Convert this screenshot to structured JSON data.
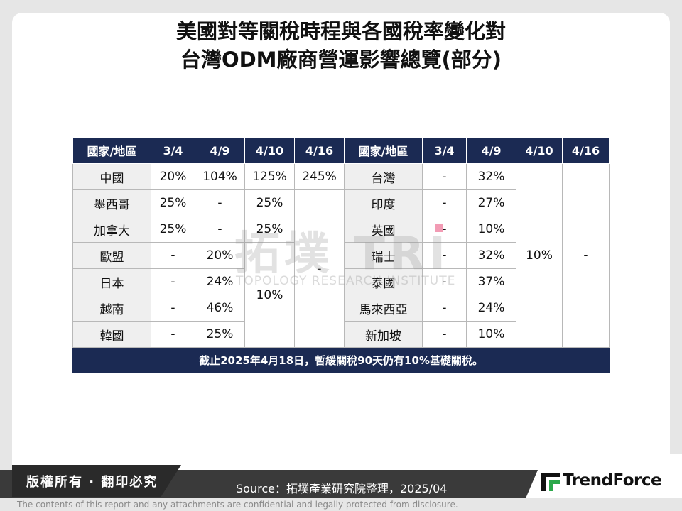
{
  "title": {
    "line1": "美國對等關稅時程與各國稅率變化對",
    "line2": "台灣ODM廠商營運影響總覽(部分)"
  },
  "watermark": {
    "main": "拓墣 TRI",
    "sub": "TOPOLOGY RESEARCH INSTITUTE"
  },
  "table": {
    "headers": [
      "國家/地區",
      "3/4",
      "4/9",
      "4/10",
      "4/16",
      "國家/地區",
      "3/4",
      "4/9",
      "4/10",
      "4/16"
    ],
    "left_rows": [
      {
        "country": "中國",
        "d34": "20%",
        "d49": "104%",
        "d410": "125%",
        "d416": "245%"
      },
      {
        "country": "墨西哥",
        "d34": "25%",
        "d49": "-",
        "d410": "25%"
      },
      {
        "country": "加拿大",
        "d34": "25%",
        "d49": "-",
        "d410": "25%"
      },
      {
        "country": "歐盟",
        "d34": "-",
        "d49": "20%"
      },
      {
        "country": "日本",
        "d34": "-",
        "d49": "24%"
      },
      {
        "country": "越南",
        "d34": "-",
        "d49": "46%"
      },
      {
        "country": "韓國",
        "d34": "-",
        "d49": "25%"
      }
    ],
    "left_merged_410": "10%",
    "left_merged_416": "-",
    "right_rows": [
      {
        "country": "台灣",
        "d34": "-",
        "d49": "32%"
      },
      {
        "country": "印度",
        "d34": "-",
        "d49": "27%"
      },
      {
        "country": "英國",
        "d34": "-",
        "d49": "10%"
      },
      {
        "country": "瑞士",
        "d34": "-",
        "d49": "32%"
      },
      {
        "country": "泰國",
        "d34": "-",
        "d49": "37%"
      },
      {
        "country": "馬來西亞",
        "d34": "-",
        "d49": "24%"
      },
      {
        "country": "新加坡",
        "d34": "-",
        "d49": "10%"
      }
    ],
    "right_merged_410": "10%",
    "right_merged_416": "-",
    "note": "截止2025年4月18日，暫緩關稅90天仍有10%基礎關稅。"
  },
  "footer": {
    "copyright": "版權所有 · 翻印必究",
    "source": "Source：拓墣產業研究院整理，2025/04",
    "brand": "TrendForce",
    "disclaimer": "The contents of this report and any attachments are confidential and legally protected from disclosure."
  },
  "colors": {
    "header_bg": "#1b2a53",
    "name_cell_bg": "#efefef",
    "footer_bg": "#3a3a3a",
    "marker_pink": "#f29bb4"
  }
}
